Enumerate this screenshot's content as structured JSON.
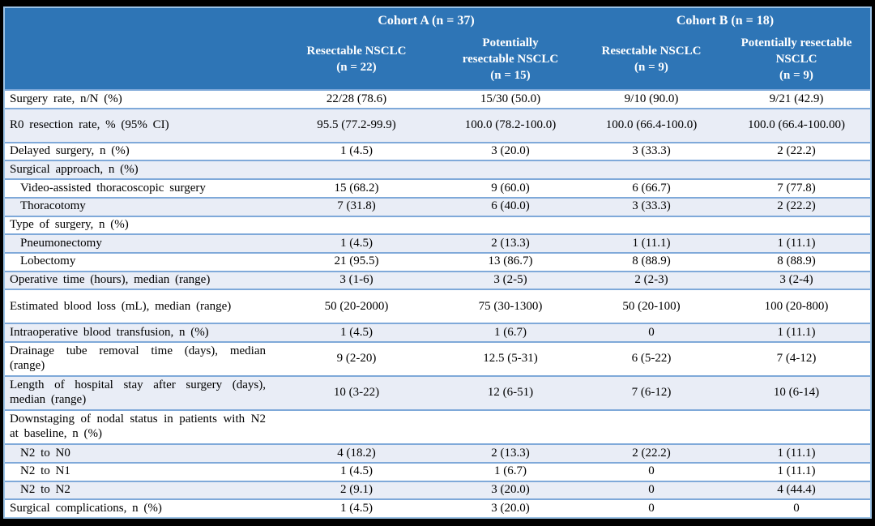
{
  "table": {
    "cohort_groups": [
      {
        "label": "Cohort A (n = 37)"
      },
      {
        "label": "Cohort B (n = 18)"
      }
    ],
    "columns": [
      {
        "lines": [
          "Resectable NSCLC"
        ],
        "n": "(n = 22)"
      },
      {
        "lines": [
          "Potentially",
          "resectable NSCLC"
        ],
        "n": "(n = 15)"
      },
      {
        "lines": [
          "Resectable NSCLC"
        ],
        "n": "(n = 9)"
      },
      {
        "lines": [
          "Potentially resectable",
          "NSCLC"
        ],
        "n": "(n = 9)"
      }
    ],
    "rows": [
      {
        "label": "Surgery rate, n/N (%)",
        "indent": false,
        "tall": false,
        "values": [
          "22/28 (78.6)",
          "15/30 (50.0)",
          "9/10 (90.0)",
          "9/21 (42.9)"
        ]
      },
      {
        "label": "R0 resection rate, % (95% CI)",
        "indent": false,
        "tall": true,
        "values": [
          "95.5 (77.2-99.9)",
          "100.0 (78.2-100.0)",
          "100.0 (66.4-100.0)",
          "100.0 (66.4-100.00)"
        ]
      },
      {
        "label": "Delayed surgery, n (%)",
        "indent": false,
        "tall": false,
        "values": [
          "1 (4.5)",
          "3 (20.0)",
          "3 (33.3)",
          "2 (22.2)"
        ]
      },
      {
        "label": "Surgical approach, n (%)",
        "indent": false,
        "tall": false,
        "values": [
          "",
          "",
          "",
          ""
        ]
      },
      {
        "label": "Video-assisted thoracoscopic surgery",
        "indent": true,
        "tall": false,
        "values": [
          "15 (68.2)",
          "9 (60.0)",
          "6 (66.7)",
          "7 (77.8)"
        ]
      },
      {
        "label": "Thoracotomy",
        "indent": true,
        "tall": false,
        "values": [
          "7 (31.8)",
          "6 (40.0)",
          "3 (33.3)",
          "2 (22.2)"
        ]
      },
      {
        "label": "Type of surgery, n (%)",
        "indent": false,
        "tall": false,
        "values": [
          "",
          "",
          "",
          ""
        ]
      },
      {
        "label": "Pneumonectomy",
        "indent": true,
        "tall": false,
        "values": [
          "1 (4.5)",
          "2 (13.3)",
          "1 (11.1)",
          "1 (11.1)"
        ]
      },
      {
        "label": "Lobectomy",
        "indent": true,
        "tall": false,
        "values": [
          "21 (95.5)",
          "13 (86.7)",
          "8 (88.9)",
          "8 (88.9)"
        ]
      },
      {
        "label": "Operative time (hours), median (range)",
        "indent": false,
        "tall": false,
        "values": [
          "3 (1-6)",
          "3 (2-5)",
          "2 (2-3)",
          "3 (2-4)"
        ]
      },
      {
        "label": "Estimated blood loss (mL), median (range)",
        "indent": false,
        "tall": true,
        "values": [
          "50 (20-2000)",
          "75 (30-1300)",
          "50 (20-100)",
          "100 (20-800)"
        ]
      },
      {
        "label": "Intraoperative blood transfusion, n (%)",
        "indent": false,
        "tall": false,
        "values": [
          "1 (4.5)",
          "1 (6.7)",
          "0",
          "1 (11.1)"
        ]
      },
      {
        "label": "Drainage tube removal time (days), median (range)",
        "indent": false,
        "tall": true,
        "values": [
          "9 (2-20)",
          "12.5 (5-31)",
          "6 (5-22)",
          "7 (4-12)"
        ]
      },
      {
        "label": "Length of hospital stay after surgery (days), median (range)",
        "indent": false,
        "tall": true,
        "values": [
          "10 (3-22)",
          "12 (6-51)",
          "7 (6-12)",
          "10 (6-14)"
        ]
      },
      {
        "label": "Downstaging of nodal status in patients with N2 at baseline, n (%)",
        "indent": false,
        "tall": true,
        "values": [
          "",
          "",
          "",
          ""
        ]
      },
      {
        "label": "N2 to N0",
        "indent": true,
        "tall": false,
        "values": [
          "4 (18.2)",
          "2 (13.3)",
          "2 (22.2)",
          "1 (11.1)"
        ]
      },
      {
        "label": "N2 to N1",
        "indent": true,
        "tall": false,
        "values": [
          "1 (4.5)",
          "1 (6.7)",
          "0",
          "1 (11.1)"
        ]
      },
      {
        "label": "N2 to N2",
        "indent": true,
        "tall": false,
        "values": [
          "2 (9.1)",
          "3 (20.0)",
          "0",
          "4 (44.4)"
        ]
      },
      {
        "label": "Surgical complications, n (%)",
        "indent": false,
        "tall": false,
        "values": [
          "1 (4.5)",
          "3 (20.0)",
          "0",
          "0"
        ]
      }
    ]
  },
  "colors": {
    "header_bg": "#2E75B6",
    "header_text": "#FFFFFF",
    "row_bg": "#FFFFFF",
    "row_alt_bg": "#E9EDF6",
    "line": "#7FA9D9",
    "outer_line": "#9CC3E6",
    "frame": "#000000",
    "body_text": "#000000"
  }
}
